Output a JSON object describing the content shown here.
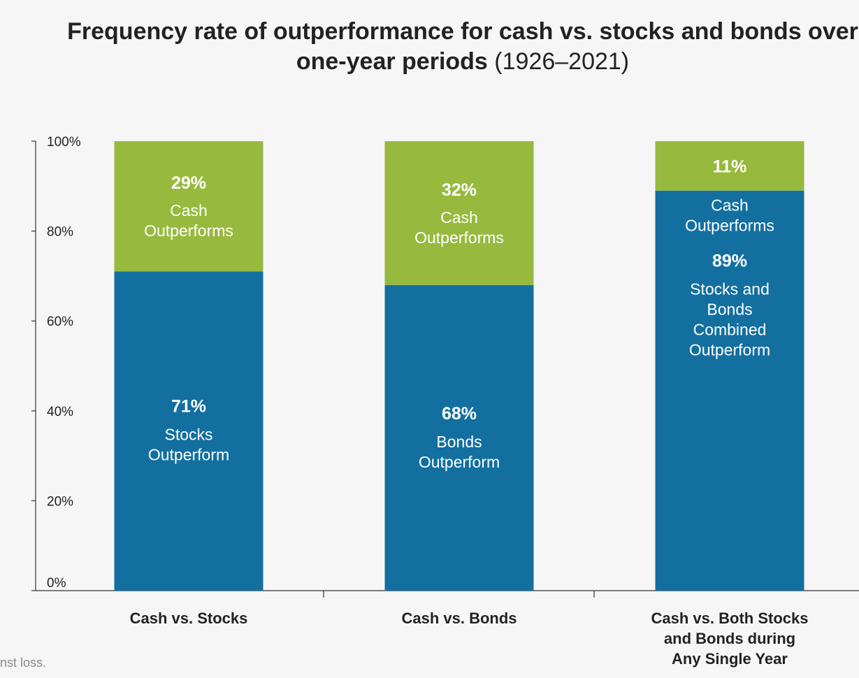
{
  "title": {
    "main": "Frequency rate of outperformance for cash vs. stocks and bonds over one-year periods",
    "years": "(1926–2021)"
  },
  "footnote": "nst loss.",
  "colors": {
    "bottom": "#126fa0",
    "top": "#97b93e",
    "text_on_bar": "#ffffff",
    "axis": "#333333",
    "label": "#222222"
  },
  "chart_data": {
    "type": "bar",
    "stacked": true,
    "categories": [
      [
        "Cash vs. Stocks"
      ],
      [
        "Cash vs. Bonds"
      ],
      [
        "Cash vs. Both Stocks",
        "and Bonds during",
        "Any Single Year"
      ]
    ],
    "ylim": [
      0,
      100
    ],
    "yticks": [
      "0%",
      "20%",
      "40%",
      "60%",
      "80%",
      "100%"
    ],
    "series": [
      {
        "values": [
          71,
          68,
          89
        ],
        "value_labels": [
          "71%",
          "68%",
          "89%"
        ],
        "descriptions": [
          [
            "Stocks",
            "Outperform"
          ],
          [
            "Bonds",
            "Outperform"
          ],
          [
            "Stocks and",
            "Bonds",
            "Combined",
            "Outperform"
          ]
        ]
      },
      {
        "values": [
          29,
          32,
          11
        ],
        "value_labels": [
          "29%",
          "32%",
          "11%"
        ],
        "descriptions": [
          [
            "Cash",
            "Outperforms"
          ],
          [
            "Cash",
            "Outperforms"
          ],
          [
            "Cash",
            "Outperforms"
          ]
        ]
      }
    ]
  }
}
